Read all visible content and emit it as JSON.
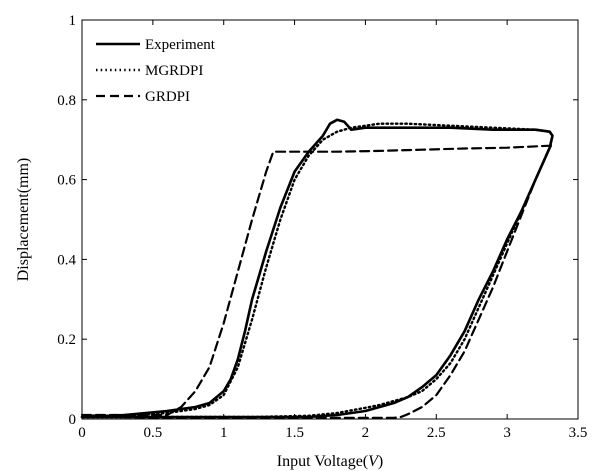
{
  "chart_data": {
    "type": "line",
    "title": "",
    "xlabel_prefix": "Input Voltage(",
    "xlabel_var": "V",
    "xlabel_suffix": ")",
    "ylabel": "Displacement(mm)",
    "xlim": [
      0,
      3.5
    ],
    "ylim": [
      0,
      1
    ],
    "x_ticks": [
      "0",
      "0.5",
      "1",
      "1.5",
      "2",
      "2.5",
      "3",
      "3.5"
    ],
    "y_ticks": [
      "0",
      "0.2",
      "0.4",
      "0.6",
      "0.8",
      "1"
    ],
    "grid": false,
    "legend_position": "top-left",
    "series": [
      {
        "name": "Experiment",
        "style": "solid",
        "x": [
          0.0,
          0.3,
          0.6,
          0.8,
          0.9,
          1.0,
          1.05,
          1.1,
          1.15,
          1.2,
          1.3,
          1.4,
          1.5,
          1.6,
          1.7,
          1.75,
          1.8,
          1.85,
          1.9,
          2.0,
          2.3,
          2.6,
          2.9,
          3.2,
          3.3,
          3.32,
          3.3,
          3.2,
          3.1,
          3.0,
          2.9,
          2.8,
          2.7,
          2.6,
          2.5,
          2.4,
          2.3,
          2.2,
          2.1,
          2.0,
          1.8,
          1.6,
          1.2,
          0.8,
          0.4,
          0.0
        ],
        "y": [
          0.005,
          0.01,
          0.02,
          0.03,
          0.04,
          0.07,
          0.1,
          0.15,
          0.22,
          0.3,
          0.42,
          0.53,
          0.62,
          0.67,
          0.71,
          0.74,
          0.75,
          0.745,
          0.725,
          0.73,
          0.73,
          0.73,
          0.725,
          0.725,
          0.72,
          0.71,
          0.68,
          0.6,
          0.52,
          0.45,
          0.37,
          0.3,
          0.22,
          0.16,
          0.11,
          0.08,
          0.055,
          0.04,
          0.03,
          0.02,
          0.01,
          0.005,
          0.005,
          0.005,
          0.005,
          0.005
        ]
      },
      {
        "name": "MGRDPI",
        "style": "dotted",
        "x": [
          0.0,
          0.3,
          0.6,
          0.8,
          0.9,
          1.0,
          1.1,
          1.2,
          1.3,
          1.4,
          1.5,
          1.6,
          1.7,
          1.8,
          1.9,
          2.0,
          2.1,
          2.3,
          2.6,
          2.9,
          3.2,
          3.3,
          3.32,
          3.3,
          3.2,
          3.1,
          3.0,
          2.9,
          2.8,
          2.7,
          2.6,
          2.5,
          2.4,
          2.3,
          2.2,
          2.1,
          2.0,
          1.8,
          1.6,
          1.2,
          0.8,
          0.4,
          0.0
        ],
        "y": [
          0.005,
          0.008,
          0.015,
          0.025,
          0.035,
          0.06,
          0.13,
          0.25,
          0.38,
          0.5,
          0.6,
          0.66,
          0.7,
          0.72,
          0.73,
          0.735,
          0.74,
          0.74,
          0.735,
          0.73,
          0.725,
          0.72,
          0.71,
          0.68,
          0.6,
          0.52,
          0.44,
          0.36,
          0.28,
          0.2,
          0.14,
          0.1,
          0.07,
          0.055,
          0.045,
          0.035,
          0.028,
          0.015,
          0.008,
          0.005,
          0.005,
          0.005,
          0.005
        ]
      },
      {
        "name": "GRDPI",
        "style": "dashed",
        "x": [
          0.0,
          0.3,
          0.6,
          0.7,
          0.8,
          0.9,
          1.0,
          1.1,
          1.2,
          1.3,
          1.35,
          1.5,
          1.8,
          2.1,
          2.4,
          2.7,
          3.0,
          3.3,
          3.32,
          3.3,
          3.2,
          3.1,
          3.0,
          2.9,
          2.8,
          2.7,
          2.6,
          2.5,
          2.4,
          2.3,
          2.25,
          2.2,
          2.1,
          1.8,
          1.4,
          1.0,
          0.6,
          0.3,
          0.0
        ],
        "y": [
          0.01,
          0.01,
          0.01,
          0.03,
          0.07,
          0.13,
          0.24,
          0.37,
          0.5,
          0.62,
          0.67,
          0.67,
          0.67,
          0.672,
          0.675,
          0.678,
          0.68,
          0.685,
          0.69,
          0.68,
          0.6,
          0.51,
          0.42,
          0.33,
          0.25,
          0.17,
          0.11,
          0.06,
          0.03,
          0.012,
          0.005,
          0.003,
          0.003,
          0.003,
          0.003,
          0.003,
          0.003,
          0.005,
          0.01
        ]
      }
    ]
  }
}
